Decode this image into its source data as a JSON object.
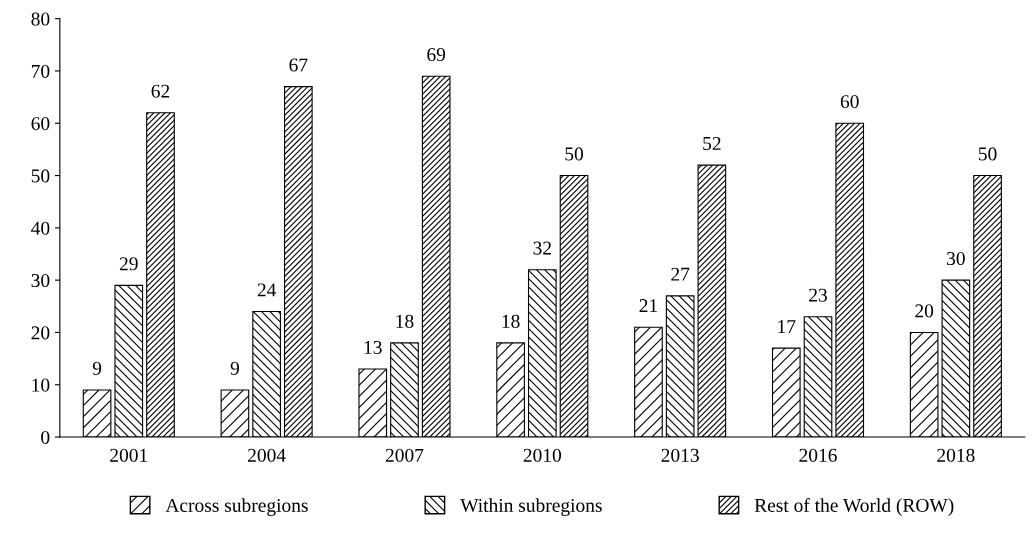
{
  "chart_data": {
    "type": "bar",
    "categories": [
      "2001",
      "2004",
      "2007",
      "2010",
      "2013",
      "2016",
      "2018"
    ],
    "series": [
      {
        "name": "Across subregions",
        "color": "#000000",
        "values": [
          9,
          9,
          13,
          18,
          21,
          17,
          20
        ]
      },
      {
        "name": "Within subregions",
        "color": "#000000",
        "values": [
          29,
          24,
          18,
          32,
          27,
          23,
          30
        ]
      },
      {
        "name": "Rest of the World (ROW)",
        "color": "#000000",
        "values": [
          62,
          67,
          69,
          50,
          52,
          60,
          50
        ]
      }
    ],
    "ylim": [
      0,
      80
    ],
    "yticks": [
      0,
      10,
      20,
      30,
      40,
      50,
      60,
      70,
      80
    ],
    "data_labels": true,
    "grid": false,
    "legend": "bottom"
  }
}
